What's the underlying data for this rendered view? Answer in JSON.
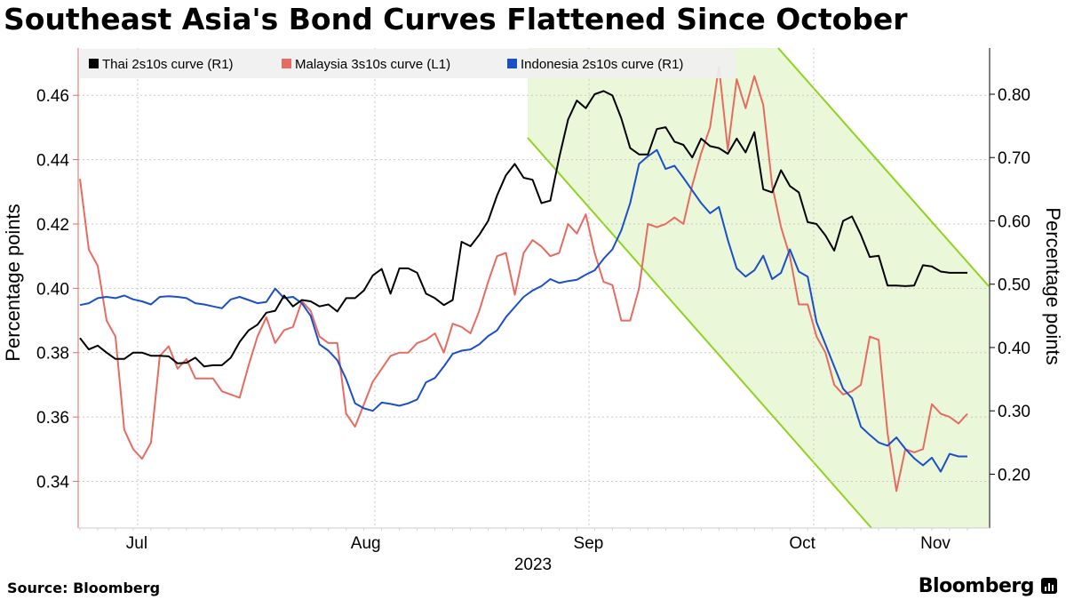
{
  "title": "Southeast Asia's Bond Curves Flattened Since October",
  "source": "Source: Bloomberg",
  "brand": "Bloomberg",
  "chart_data": {
    "type": "line",
    "x_labels": [
      "Jul",
      "Aug",
      "Sep",
      "Oct",
      "Nov"
    ],
    "x_year": "2023",
    "left_axis": {
      "label": "Percentage points",
      "ticks": [
        "0.34",
        "0.36",
        "0.38",
        "0.40",
        "0.42",
        "0.44",
        "0.46"
      ],
      "range": [
        0.3255,
        0.4747
      ]
    },
    "right_axis": {
      "label": "Percentage points",
      "ticks": [
        "0.20",
        "0.30",
        "0.40",
        "0.50",
        "0.60",
        "0.70",
        "0.80"
      ],
      "range": [
        0.115,
        0.873
      ]
    },
    "x_range": [
      0,
      100
    ],
    "month_positions": [
      6.4,
      32.2,
      57.3,
      81.4,
      96.4
    ],
    "grid": true,
    "legend_position": "top-left",
    "series": [
      {
        "name": "Thai 2s10s curve (R1)",
        "axis": "right",
        "color": "#000000",
        "x": [
          0.0,
          1.0,
          2.0,
          3.0,
          4.0,
          5.0,
          6.0,
          7.0,
          8.0,
          9.0,
          10.0,
          11.0,
          12.0,
          13.0,
          14.0,
          15.0,
          16.0,
          17.0,
          18.0,
          19.0,
          20.0,
          21.0,
          22.0,
          23.0,
          24.0,
          25.0,
          26.0,
          27.0,
          28.0,
          29.0,
          30.0,
          31.0,
          32.0,
          33.0,
          34.0,
          35.0,
          36.0,
          37.0,
          38.0,
          39.0,
          40.0,
          41.0,
          42.0,
          43.0,
          44.0,
          45.0,
          46.0,
          47.0,
          48.0,
          49.0,
          50.0,
          51.0,
          52.0,
          53.0,
          54.0,
          55.0,
          56.0,
          57.0,
          58.0,
          59.0,
          60.0,
          61.0,
          62.0,
          63.0,
          64.0,
          65.0,
          66.0,
          67.0,
          68.0,
          69.0,
          70.0,
          71.0,
          72.0,
          73.0,
          74.0,
          75.0,
          76.0,
          77.0,
          78.0,
          79.0,
          80.0,
          81.0,
          82.0,
          83.0,
          84.0,
          85.0,
          86.0,
          87.0,
          88.0,
          89.0,
          90.0,
          91.0,
          92.0,
          93.0,
          94.0,
          95.0,
          96.0,
          97.0,
          98.0,
          99.0,
          100.0
        ],
        "values": [
          0.415,
          0.397,
          0.403,
          0.392,
          0.382,
          0.382,
          0.392,
          0.392,
          0.387,
          0.387,
          0.386,
          0.375,
          0.376,
          0.384,
          0.37,
          0.372,
          0.372,
          0.384,
          0.409,
          0.427,
          0.436,
          0.455,
          0.458,
          0.482,
          0.465,
          0.475,
          0.473,
          0.465,
          0.468,
          0.457,
          0.478,
          0.478,
          0.49,
          0.514,
          0.524,
          0.485,
          0.525,
          0.525,
          0.518,
          0.485,
          0.478,
          0.467,
          0.475,
          0.567,
          0.56,
          0.578,
          0.6,
          0.64,
          0.672,
          0.69,
          0.668,
          0.665,
          0.628,
          0.632,
          0.7,
          0.76,
          0.79,
          0.778,
          0.8,
          0.805,
          0.798,
          0.762,
          0.715,
          0.705,
          0.705,
          0.745,
          0.748,
          0.725,
          0.72,
          0.7,
          0.73,
          0.718,
          0.715,
          0.706,
          0.73,
          0.708,
          0.74,
          0.65,
          0.645,
          0.68,
          0.655,
          0.645,
          0.598,
          0.595,
          0.577,
          0.553,
          0.6,
          0.607,
          0.578,
          0.543,
          0.545,
          0.498,
          0.498,
          0.497,
          0.498,
          0.53,
          0.528,
          0.52,
          0.518,
          0.518,
          0.518
        ]
      },
      {
        "name": "Malaysia 3s10s curve (L1)",
        "axis": "left",
        "color": "#e66b61",
        "x": [
          0.0,
          1.0,
          2.0,
          3.0,
          4.0,
          5.0,
          6.0,
          7.0,
          8.0,
          9.0,
          10.0,
          11.0,
          12.0,
          13.0,
          14.0,
          15.0,
          16.0,
          17.0,
          18.0,
          19.0,
          20.0,
          21.0,
          22.0,
          23.0,
          24.0,
          25.0,
          26.0,
          27.0,
          28.0,
          29.0,
          30.0,
          31.0,
          32.0,
          33.0,
          34.0,
          35.0,
          36.0,
          37.0,
          38.0,
          39.0,
          40.0,
          41.0,
          42.0,
          43.0,
          44.0,
          45.0,
          46.0,
          47.0,
          48.0,
          49.0,
          50.0,
          51.0,
          52.0,
          53.0,
          54.0,
          55.0,
          56.0,
          57.0,
          58.0,
          59.0,
          60.0,
          61.0,
          62.0,
          63.0,
          64.0,
          65.0,
          66.0,
          67.0,
          68.0,
          69.0,
          70.0,
          71.0,
          72.0,
          73.0,
          74.0,
          75.0,
          76.0,
          77.0,
          78.0,
          79.0,
          80.0,
          81.0,
          82.0,
          83.0,
          84.0,
          85.0,
          86.0,
          87.0,
          88.0,
          89.0,
          90.0,
          91.0,
          92.0,
          93.0,
          94.0,
          95.0,
          96.0,
          97.0,
          98.0,
          99.0,
          100.0
        ],
        "values": [
          0.434,
          0.412,
          0.407,
          0.39,
          0.385,
          0.356,
          0.35,
          0.347,
          0.352,
          0.379,
          0.382,
          0.375,
          0.378,
          0.372,
          0.372,
          0.372,
          0.368,
          0.367,
          0.366,
          0.376,
          0.385,
          0.391,
          0.383,
          0.387,
          0.388,
          0.396,
          0.393,
          0.385,
          0.383,
          0.383,
          0.361,
          0.357,
          0.364,
          0.371,
          0.375,
          0.379,
          0.38,
          0.38,
          0.383,
          0.384,
          0.386,
          0.38,
          0.389,
          0.388,
          0.386,
          0.393,
          0.402,
          0.41,
          0.411,
          0.398,
          0.411,
          0.415,
          0.413,
          0.41,
          0.411,
          0.42,
          0.417,
          0.423,
          0.411,
          0.402,
          0.401,
          0.39,
          0.39,
          0.4,
          0.42,
          0.419,
          0.42,
          0.422,
          0.42,
          0.432,
          0.442,
          0.45,
          0.469,
          0.443,
          0.465,
          0.456,
          0.466,
          0.457,
          0.432,
          0.419,
          0.41,
          0.395,
          0.395,
          0.385,
          0.38,
          0.37,
          0.367,
          0.368,
          0.37,
          0.385,
          0.384,
          0.355,
          0.337,
          0.35,
          0.349,
          0.35,
          0.364,
          0.361,
          0.36,
          0.358,
          0.361
        ]
      },
      {
        "name": "Indonesia 2s10s curve (R1)",
        "axis": "right",
        "color": "#1b4fc9",
        "x": [
          0.0,
          1.0,
          2.0,
          3.0,
          4.0,
          5.0,
          6.0,
          7.0,
          8.0,
          9.0,
          10.0,
          11.0,
          12.0,
          13.0,
          14.0,
          15.0,
          16.0,
          17.0,
          18.0,
          19.0,
          20.0,
          21.0,
          22.0,
          23.0,
          24.0,
          25.0,
          26.0,
          27.0,
          28.0,
          29.0,
          30.0,
          31.0,
          32.0,
          33.0,
          34.0,
          35.0,
          36.0,
          37.0,
          38.0,
          39.0,
          40.0,
          41.0,
          42.0,
          43.0,
          44.0,
          45.0,
          46.0,
          47.0,
          48.0,
          49.0,
          50.0,
          51.0,
          52.0,
          53.0,
          54.0,
          55.0,
          56.0,
          57.0,
          58.0,
          59.0,
          60.0,
          61.0,
          62.0,
          63.0,
          64.0,
          65.0,
          66.0,
          67.0,
          68.0,
          69.0,
          70.0,
          71.0,
          72.0,
          73.0,
          74.0,
          75.0,
          76.0,
          77.0,
          78.0,
          79.0,
          80.0,
          81.0,
          82.0,
          83.0,
          84.0,
          85.0,
          86.0,
          87.0,
          88.0,
          89.0,
          90.0,
          91.0,
          92.0,
          93.0,
          94.0,
          95.0,
          96.0,
          97.0,
          98.0,
          99.0,
          100.0
        ],
        "values": [
          0.467,
          0.47,
          0.478,
          0.48,
          0.478,
          0.482,
          0.476,
          0.473,
          0.468,
          0.48,
          0.481,
          0.48,
          0.478,
          0.47,
          0.468,
          0.465,
          0.462,
          0.476,
          0.48,
          0.475,
          0.47,
          0.472,
          0.493,
          0.478,
          0.48,
          0.47,
          0.45,
          0.405,
          0.395,
          0.38,
          0.35,
          0.312,
          0.304,
          0.3,
          0.313,
          0.311,
          0.308,
          0.312,
          0.318,
          0.345,
          0.352,
          0.37,
          0.39,
          0.395,
          0.397,
          0.405,
          0.418,
          0.427,
          0.448,
          0.464,
          0.48,
          0.49,
          0.497,
          0.508,
          0.502,
          0.505,
          0.507,
          0.515,
          0.522,
          0.54,
          0.555,
          0.585,
          0.628,
          0.69,
          0.702,
          0.712,
          0.682,
          0.687,
          0.668,
          0.648,
          0.628,
          0.612,
          0.622,
          0.57,
          0.525,
          0.512,
          0.522,
          0.545,
          0.508,
          0.518,
          0.555,
          0.52,
          0.512,
          0.44,
          0.405,
          0.37,
          0.335,
          0.32,
          0.275,
          0.262,
          0.25,
          0.245,
          0.258,
          0.24,
          0.225,
          0.214,
          0.226,
          0.204,
          0.232,
          0.228,
          0.228
        ]
      }
    ],
    "annotations": {
      "shaded_trend_channel": true,
      "channel_color": "#e9f7d6",
      "channel_line_color": "#8fd31e"
    }
  }
}
